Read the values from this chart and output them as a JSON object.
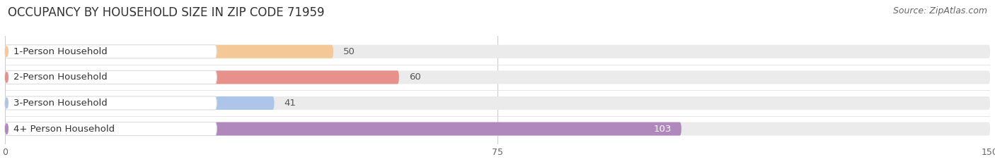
{
  "title": "OCCUPANCY BY HOUSEHOLD SIZE IN ZIP CODE 71959",
  "source": "Source: ZipAtlas.com",
  "categories": [
    "1-Person Household",
    "2-Person Household",
    "3-Person Household",
    "4+ Person Household"
  ],
  "values": [
    50,
    60,
    41,
    103
  ],
  "bar_colors": [
    "#f5c898",
    "#e8908a",
    "#adc5e8",
    "#b088be"
  ],
  "value_inside": [
    false,
    false,
    false,
    true
  ],
  "xlim": [
    0,
    150
  ],
  "xticks": [
    0,
    75,
    150
  ],
  "background_color": "#ffffff",
  "bar_track_color": "#ebebeb",
  "title_fontsize": 12,
  "source_fontsize": 9,
  "label_fontsize": 9.5,
  "value_fontsize": 9.5
}
